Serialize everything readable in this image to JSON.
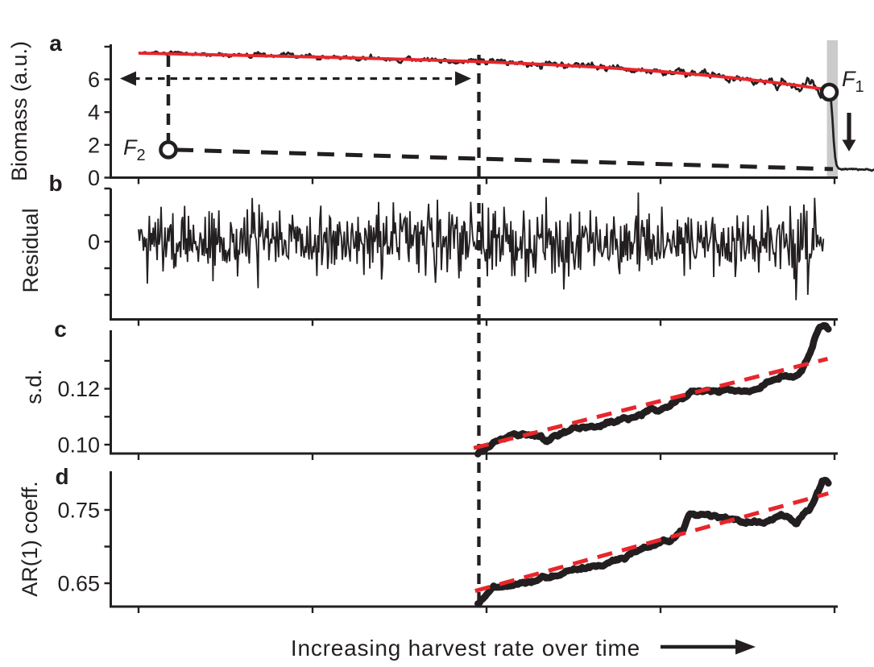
{
  "figure": {
    "xlabel": "Increasing harvest rate over time",
    "colors": {
      "black": "#231f20",
      "red": "#e8262b",
      "gray_band": "#cbcbcb",
      "background": "#ffffff"
    }
  },
  "chart_data": [
    {
      "panel": "a",
      "type": "line",
      "ylabel": "Biomass (a.u.)",
      "ylim": [
        0,
        8.15
      ],
      "yticks": [
        0,
        2,
        4,
        6,
        8
      ],
      "ytick_texts": [
        {
          "v": 0,
          "t": "0"
        },
        {
          "v": 2,
          "t": "2"
        },
        {
          "v": 4,
          "t": "4"
        },
        {
          "v": 6,
          "t": "6"
        }
      ],
      "series": [
        {
          "name": "biomass",
          "style": "noisy-line",
          "color": "black",
          "x_range": [
            0,
            1
          ],
          "trend": {
            "start": 7.6,
            "linear": -0.9,
            "quartic": -1.35
          },
          "noise_sd_start": 0.05,
          "noise_sd_end": 0.11
        },
        {
          "name": "biomass-smoothed",
          "style": "solid-line",
          "color": "red",
          "x_range": [
            0,
            0.988
          ],
          "trend": {
            "start": 7.6,
            "linear": -0.9,
            "quartic": -1.35
          }
        },
        {
          "name": "collapse-drop",
          "style": "solid-line",
          "color": "black",
          "points_x": [
            1.0,
            1.002,
            1.004,
            1.006,
            1.008,
            1.01,
            1.013
          ],
          "points_v": [
            5.2,
            4.7,
            3.6,
            2.2,
            1.2,
            0.75,
            0.55
          ]
        },
        {
          "name": "post-collapse",
          "style": "noisy-line",
          "color": "black",
          "x_range": [
            1.013,
            1.064
          ],
          "trend_values": [
            0.52,
            0.45
          ],
          "noise_sd": 0.04
        },
        {
          "name": "unstable-equilibrium-branch",
          "style": "long-dash-line",
          "color": "black",
          "x_range": [
            0.0548,
            1.0047
          ],
          "values": [
            1.7,
            0.52
          ]
        }
      ],
      "annotations": {
        "F1": {
          "text": "F",
          "sub": "1",
          "x": 0.9994,
          "y": 5.22
        },
        "F2": {
          "text": "F",
          "sub": "2",
          "x": 0.0431,
          "y": 1.7
        },
        "gray_band": {
          "x0": 0.996,
          "x1": 1.0117
        },
        "double_arrow": {
          "y": 6.05,
          "x0": -0.0268,
          "x1": 0.4813
        },
        "f2_vline": {
          "x": 0.0431,
          "y_top": 7.45,
          "y_bottom": 2.2
        },
        "collapse_arrow": {
          "x": 1.028,
          "y_top": 3.96,
          "y_bottom": 1.6
        },
        "tipping_vline_x": 0.4924
      }
    },
    {
      "panel": "b",
      "type": "line",
      "ylabel": "Residual",
      "ylim": [
        -2.95,
        2.05
      ],
      "yticks": [
        -2,
        -1,
        0,
        1,
        2
      ],
      "ytick_texts": [
        {
          "v": 0,
          "t": "0"
        }
      ],
      "series": [
        {
          "name": "residuals",
          "style": "noisy-line",
          "color": "black",
          "x_range": [
            0,
            0.991
          ],
          "mean": 0,
          "sd": 0.52,
          "spikes": [
            {
              "x": 0.43,
              "v": -1.55
            },
            {
              "x": 0.48,
              "v": 1.5
            },
            {
              "x": 0.615,
              "v": -1.8
            },
            {
              "x": 0.91,
              "v": 1.35
            },
            {
              "x": 0.951,
              "v": -2.2
            },
            {
              "x": 0.962,
              "v": 1.4
            },
            {
              "x": 0.968,
              "v": -2.0
            },
            {
              "x": 0.978,
              "v": 1.65
            },
            {
              "x": 0.993,
              "v": 1.7
            }
          ]
        }
      ]
    },
    {
      "panel": "c",
      "type": "line",
      "ylabel": "s.d.",
      "ylim": [
        0.0965,
        0.1405
      ],
      "yticks": [
        0.1,
        0.11,
        0.12,
        0.13
      ],
      "ytick_texts": [
        {
          "v": 0.1,
          "t": "0.10"
        },
        {
          "v": 0.12,
          "t": "0.12"
        }
      ],
      "series": [
        {
          "name": "rolling-sd",
          "style": "thick-noisy-line",
          "color": "black",
          "x": [
            0.491,
            0.514,
            0.536,
            0.557,
            0.575,
            0.592,
            0.612,
            0.631,
            0.65,
            0.67,
            0.689,
            0.709,
            0.732,
            0.749,
            0.769,
            0.784,
            0.804,
            0.828,
            0.851,
            0.874,
            0.895,
            0.913,
            0.927,
            0.939,
            0.951,
            0.96,
            0.969,
            0.976,
            0.981,
            0.987,
            0.993,
            0.998
          ],
          "values": [
            0.097,
            0.1006,
            0.1031,
            0.1044,
            0.1038,
            0.1021,
            0.104,
            0.1063,
            0.1078,
            0.1074,
            0.1092,
            0.1107,
            0.1114,
            0.1125,
            0.114,
            0.1166,
            0.1186,
            0.1188,
            0.1194,
            0.1201,
            0.1208,
            0.1222,
            0.124,
            0.1243,
            0.1238,
            0.126,
            0.13,
            0.135,
            0.1393,
            0.1428,
            0.1437,
            0.1422
          ]
        },
        {
          "name": "sd-linear-fit",
          "style": "dash-line",
          "color": "red",
          "x_range": [
            0.485,
            0.997
          ],
          "values": [
            0.0988,
            0.1307
          ]
        }
      ]
    },
    {
      "panel": "d",
      "type": "line",
      "ylabel": "AR(1) coeff.",
      "ylim": [
        0.617,
        0.803
      ],
      "yticks": [
        0.65,
        0.7,
        0.75
      ],
      "ytick_texts": [
        {
          "v": 0.65,
          "t": "0.65"
        },
        {
          "v": 0.75,
          "t": "0.75"
        }
      ],
      "series": [
        {
          "name": "rolling-ar1",
          "style": "thick-noisy-line",
          "color": "black",
          "x": [
            0.491,
            0.5,
            0.513,
            0.534,
            0.555,
            0.573,
            0.593,
            0.613,
            0.632,
            0.651,
            0.671,
            0.69,
            0.71,
            0.73,
            0.748,
            0.769,
            0.782,
            0.788,
            0.797,
            0.819,
            0.846,
            0.874,
            0.903,
            0.925,
            0.942,
            0.952,
            0.962,
            0.97,
            0.977,
            0.984,
            0.989,
            0.994,
            0.998
          ],
          "values": [
            0.6215,
            0.6265,
            0.642,
            0.647,
            0.6525,
            0.651,
            0.6565,
            0.66,
            0.6655,
            0.671,
            0.675,
            0.686,
            0.693,
            0.697,
            0.7005,
            0.7075,
            0.718,
            0.7225,
            0.742,
            0.74,
            0.7365,
            0.7335,
            0.73,
            0.739,
            0.7385,
            0.73,
            0.744,
            0.748,
            0.762,
            0.779,
            0.792,
            0.795,
            0.791
          ]
        },
        {
          "name": "ar1-linear-fit",
          "style": "dash-line",
          "color": "red",
          "x_range": [
            0.487,
            0.998
          ],
          "values": [
            0.6395,
            0.7725
          ]
        }
      ]
    }
  ]
}
